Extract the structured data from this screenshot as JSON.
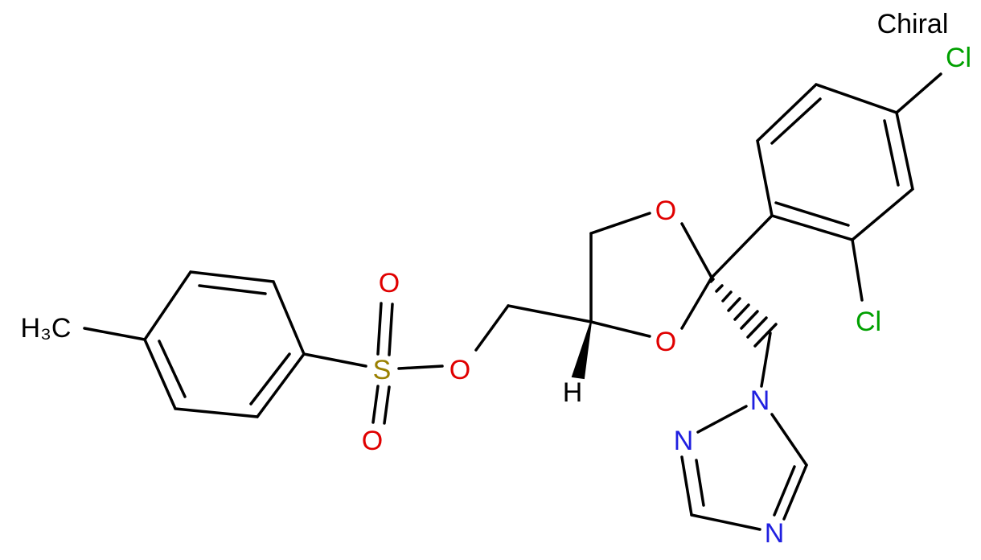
{
  "annotation": "Chiral",
  "atoms": [
    "Cl",
    "Cl",
    "O",
    "O",
    "O",
    "S",
    "O",
    "O",
    "H₃C",
    "H",
    "N",
    "N",
    "N"
  ]
}
